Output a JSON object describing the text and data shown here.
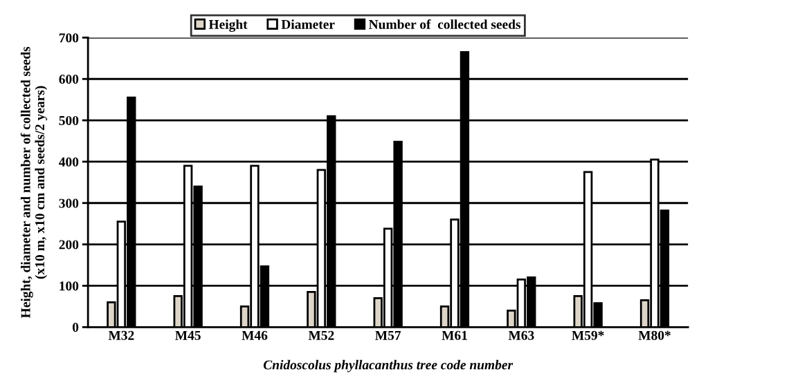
{
  "chart_data": {
    "type": "bar",
    "categories": [
      "M32",
      "M45",
      "M46",
      "M52",
      "M57",
      "M61",
      "M63",
      "M59*",
      "M80*"
    ],
    "series": [
      {
        "name": "Height",
        "color": "#ddd5c8",
        "values": [
          60,
          75,
          50,
          85,
          70,
          50,
          40,
          75,
          65
        ]
      },
      {
        "name": "Diameter",
        "color": "#ffffff",
        "values": [
          255,
          390,
          390,
          380,
          238,
          260,
          115,
          375,
          405
        ]
      },
      {
        "name": "Number of  collected seeds",
        "color": "#000000",
        "values": [
          555,
          340,
          147,
          510,
          448,
          665,
          120,
          58,
          282
        ]
      }
    ],
    "xlabel": "Cnidoscolus phyllacanthus tree code number",
    "ylabel": "Height, diameter and number of collected seeds\n(x10 m, x10 cm and seeds/2 years)",
    "ylim": [
      0,
      700
    ],
    "yticks": [
      0,
      100,
      200,
      300,
      400,
      500,
      600,
      700
    ],
    "grid": "y",
    "legend": "top"
  }
}
